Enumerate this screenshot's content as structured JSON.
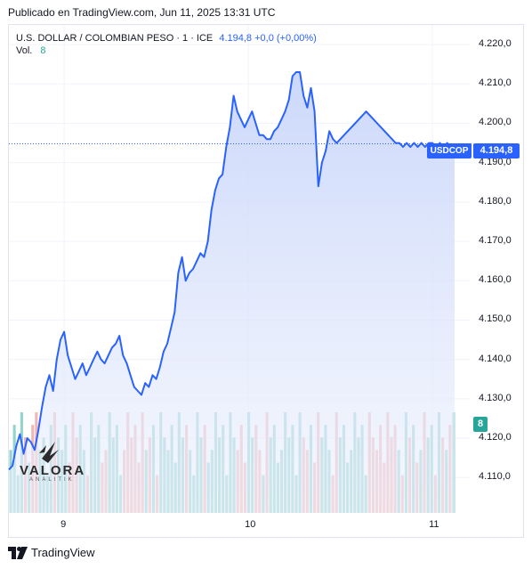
{
  "published": "Publicado en TradingView.com, Jun 11, 2025 13:31 UTC",
  "legend": {
    "symbol_line": "U.S. DOLLAR / COLOMBIAN PESO · 1 · ICE",
    "value": "4.194,8 +0,0 (+0,00%)"
  },
  "volume": {
    "label": "Vol.",
    "value": "8"
  },
  "tags": {
    "symbol": "USDCOP",
    "price": "4.194,8",
    "volume": "8"
  },
  "footer": {
    "brand": "TradingView",
    "logo": "tradingview-logo-icon"
  },
  "watermark": {
    "name": "VALORA",
    "sub": "ANALITIK",
    "logo": "valora-bird-icon"
  },
  "colors": {
    "line": "#2962ff",
    "fill": "#d6e0fb",
    "vol_up": "#80cbc4",
    "vol_down": "#f0a8a8",
    "tag": "#2962ff",
    "tag_vol": "#26a69a"
  },
  "chart_data": {
    "type": "area",
    "y_axis": {
      "ticks": [
        4220.0,
        4210.0,
        4200.0,
        4190.0,
        4180.0,
        4170.0,
        4160.0,
        4150.0,
        4140.0,
        4130.0,
        4120.0,
        4110.0
      ],
      "tick_labels": [
        "4.220,0",
        "4.210,0",
        "4.200,0",
        "4.190,0",
        "4.180,0",
        "4.170,0",
        "4.160,0",
        "4.150,0",
        "4.140,0",
        "4.130,0",
        "4.120,0",
        "4.110,0"
      ],
      "ylim": [
        4101,
        4225
      ]
    },
    "x_axis": {
      "tick_labels": [
        "9",
        "10",
        "11"
      ],
      "tick_positions": [
        0.3,
        1.3,
        2.3
      ],
      "xlim": [
        0,
        2.425
      ]
    },
    "last_price": 4194.8,
    "grid": true,
    "series": [
      {
        "x": [
          0.0,
          0.02,
          0.04,
          0.06,
          0.08,
          0.1,
          0.12,
          0.14,
          0.16,
          0.18,
          0.2,
          0.22,
          0.24,
          0.26,
          0.28,
          0.3,
          0.32,
          0.34,
          0.36,
          0.38,
          0.4,
          0.42,
          0.44,
          0.46,
          0.48,
          0.5,
          0.52,
          0.54,
          0.56,
          0.58,
          0.6,
          0.62,
          0.64,
          0.66,
          0.68,
          0.7,
          0.72,
          0.74,
          0.76,
          0.78,
          0.8,
          0.82,
          0.84,
          0.86,
          0.88,
          0.9,
          0.92,
          0.94,
          0.96,
          0.98,
          1.0,
          1.02,
          1.04,
          1.06,
          1.08,
          1.1,
          1.12,
          1.14,
          1.16,
          1.18,
          1.2,
          1.22,
          1.24,
          1.26,
          1.28,
          1.3,
          1.32,
          1.34,
          1.36,
          1.38,
          1.4,
          1.42,
          1.44,
          1.46,
          1.48,
          1.5,
          1.52,
          1.54,
          1.56,
          1.58,
          1.6,
          1.62,
          1.64,
          1.66,
          1.68,
          1.7,
          1.72,
          1.74,
          1.76,
          1.78,
          1.8,
          1.82,
          1.84,
          1.86,
          1.88,
          1.9,
          1.92,
          1.94,
          1.96,
          1.98,
          2.0,
          2.02,
          2.04,
          2.06,
          2.08,
          2.1,
          2.12,
          2.14,
          2.16,
          2.18,
          2.2,
          2.22,
          2.24,
          2.26,
          2.28,
          2.3,
          2.32,
          2.34,
          2.36,
          2.38,
          2.4,
          2.42
        ],
        "values": [
          4112,
          4113,
          4118,
          4121,
          4116,
          4120,
          4119,
          4117,
          4122,
          4128,
          4133,
          4136,
          4132,
          4140,
          4145,
          4147,
          4141,
          4138,
          4135,
          4137,
          4139,
          4136,
          4138,
          4140,
          4142,
          4140,
          4139,
          4141,
          4143,
          4144,
          4146,
          4141,
          4139,
          4136,
          4133,
          4132,
          4131,
          4134,
          4133,
          4136,
          4135,
          4138,
          4142,
          4144,
          4148,
          4152,
          4162,
          4166,
          4160,
          4162,
          4163,
          4165,
          4167,
          4166,
          4170,
          4178,
          4183,
          4186,
          4187,
          4194,
          4199,
          4207,
          4203,
          4201,
          4199,
          4201,
          4203,
          4200,
          4197,
          4197,
          4196,
          4196,
          4198,
          4199,
          4201,
          4203,
          4206,
          4212,
          4213,
          4213,
          4207,
          4204,
          4209,
          4203,
          4184,
          4190,
          4193,
          4198,
          4196,
          4195,
          4196,
          4197,
          4198,
          4199,
          4200,
          4201,
          4202,
          4203,
          4202,
          4201,
          4200,
          4199,
          4198,
          4197,
          4196,
          4195,
          4195,
          4194,
          4195,
          4194,
          4195,
          4194,
          4195,
          4194,
          4195,
          4195,
          4194,
          4195,
          4194,
          4195,
          4194,
          4194.8
        ]
      }
    ],
    "volume": [
      5,
      7,
      3,
      8,
      6,
      4,
      7,
      8,
      5,
      6,
      3,
      7,
      8,
      6,
      5,
      7,
      4,
      8,
      6,
      7,
      5,
      3,
      8,
      6,
      7,
      4,
      5,
      8,
      6,
      7,
      3,
      5,
      8,
      6,
      7,
      4,
      8,
      5,
      6,
      7,
      3,
      8,
      6,
      5,
      7,
      4,
      8,
      6,
      7,
      5,
      3,
      8,
      6,
      7,
      4,
      5,
      8,
      6,
      7,
      3,
      8,
      6,
      5,
      7,
      4,
      8,
      6,
      7,
      5,
      3,
      8,
      6,
      7,
      4,
      5,
      8,
      6,
      7,
      3,
      8,
      6,
      5,
      7,
      4,
      8,
      6,
      7,
      5,
      3,
      8,
      6,
      7,
      4,
      5,
      8,
      6,
      7,
      3,
      8,
      6,
      5,
      7,
      4,
      8,
      6,
      7,
      5,
      3,
      8,
      6,
      7,
      4,
      5,
      8,
      6,
      7,
      3,
      8,
      6,
      5,
      7,
      8
    ]
  }
}
